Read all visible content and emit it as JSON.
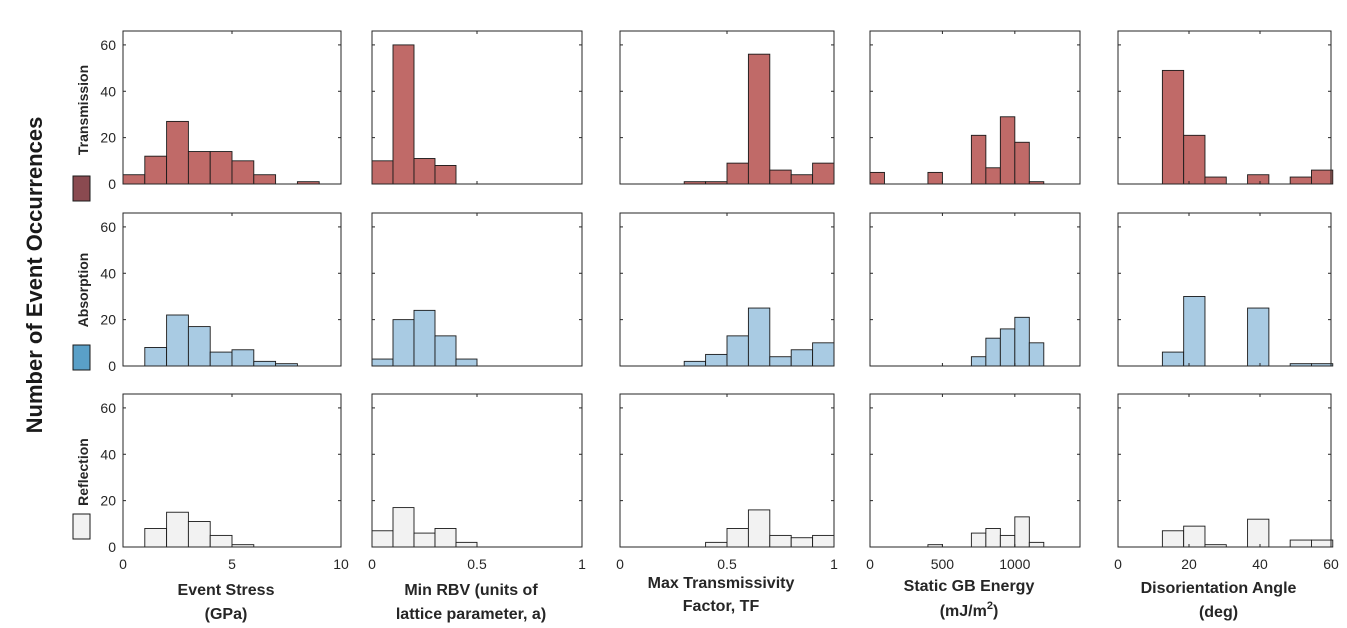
{
  "figure": {
    "ylabel": "Number of Event Occurrences",
    "rows": [
      {
        "label": "Transmission",
        "color": "#c06a68",
        "swatch": "#8a4a50"
      },
      {
        "label": "Absorption",
        "color": "#a9cbe3",
        "swatch": "#5aa0c8"
      },
      {
        "label": "Reflection",
        "color": "#f2f2f2",
        "swatch": "#f2f2f2"
      }
    ],
    "xlabel_lines": [
      [
        "Event Stress",
        "(GPa)"
      ],
      [
        "Min RBV (units of",
        "lattice parameter, a)"
      ],
      [
        "Max Transmissivity",
        "Factor, TF"
      ],
      [
        "Static GB Energy",
        "(mJ/m",
        "2",
        ")"
      ],
      [
        "Disorientation Angle",
        "(deg)"
      ]
    ]
  },
  "chart_data": [
    {
      "type": "bar",
      "title": "Event Stress (GPa)",
      "xlabel": "Event Stress (GPa)",
      "ylabel": "Number of Event Occurrences",
      "xlim": [
        0,
        10
      ],
      "ylim": [
        0,
        66
      ],
      "xticks": [
        "0",
        "5",
        "10"
      ],
      "xtick_values": [
        0,
        5,
        10
      ],
      "yticks": [
        "0",
        "20",
        "40",
        "60"
      ],
      "ytick_values": [
        0,
        20,
        40,
        60
      ],
      "bin_edges": [
        0,
        1,
        2,
        3,
        4,
        5,
        6,
        7,
        8,
        9,
        10
      ],
      "series": [
        {
          "name": "Transmission",
          "values": [
            4,
            12,
            27,
            14,
            14,
            10,
            4,
            0,
            1,
            0
          ]
        },
        {
          "name": "Absorption",
          "values": [
            0,
            8,
            22,
            17,
            6,
            7,
            2,
            1,
            0,
            0
          ]
        },
        {
          "name": "Reflection",
          "values": [
            0,
            8,
            15,
            11,
            5,
            1,
            0,
            0,
            0,
            0
          ]
        }
      ]
    },
    {
      "type": "bar",
      "title": "Min RBV",
      "xlabel": "Min RBV (units of lattice parameter, a)",
      "ylabel": "Number of Event Occurrences",
      "xlim": [
        0,
        1
      ],
      "ylim": [
        0,
        66
      ],
      "xticks": [
        "0",
        "0.5",
        "1"
      ],
      "xtick_values": [
        0,
        0.5,
        1
      ],
      "yticks": [
        "0",
        "20",
        "40",
        "60"
      ],
      "ytick_values": [
        0,
        20,
        40,
        60
      ],
      "bin_edges": [
        0,
        0.1,
        0.2,
        0.3,
        0.4,
        0.5
      ],
      "series": [
        {
          "name": "Transmission",
          "values": [
            10,
            60,
            11,
            8,
            0
          ]
        },
        {
          "name": "Absorption",
          "values": [
            3,
            20,
            24,
            13,
            3
          ]
        },
        {
          "name": "Reflection",
          "values": [
            7,
            17,
            6,
            8,
            2
          ]
        }
      ]
    },
    {
      "type": "bar",
      "title": "Max Transmissivity Factor",
      "xlabel": "Max Transmissivity Factor, TF",
      "ylabel": "Number of Event Occurrences",
      "xlim": [
        0,
        1
      ],
      "ylim": [
        0,
        66
      ],
      "xticks": [
        "0",
        "0.5",
        "1"
      ],
      "xtick_values": [
        0,
        0.5,
        1
      ],
      "yticks": [
        "0",
        "20",
        "40",
        "60"
      ],
      "ytick_values": [
        0,
        20,
        40,
        60
      ],
      "bin_edges": [
        0.3,
        0.4,
        0.5,
        0.6,
        0.7,
        0.8,
        0.9,
        1.0
      ],
      "series": [
        {
          "name": "Transmission",
          "values": [
            1,
            1,
            9,
            56,
            6,
            4,
            9
          ]
        },
        {
          "name": "Absorption",
          "values": [
            2,
            5,
            13,
            25,
            4,
            7,
            10
          ]
        },
        {
          "name": "Reflection",
          "values": [
            0,
            2,
            8,
            16,
            5,
            4,
            5
          ]
        }
      ]
    },
    {
      "type": "bar",
      "title": "Static GB Energy",
      "xlabel": "Static GB Energy (mJ/m^2)",
      "ylabel": "Number of Event Occurrences",
      "xlim": [
        0,
        1450
      ],
      "ylim": [
        0,
        66
      ],
      "xticks": [
        "0",
        "500",
        "1000"
      ],
      "xtick_values": [
        0,
        500,
        1000
      ],
      "yticks": [
        "0",
        "20",
        "40",
        "60"
      ],
      "ytick_values": [
        0,
        20,
        40,
        60
      ],
      "bin_edges": [
        0,
        100,
        200,
        300,
        400,
        500,
        600,
        700,
        800,
        900,
        1000,
        1100,
        1200,
        1300,
        1400
      ],
      "series": [
        {
          "name": "Transmission",
          "values": [
            5,
            0,
            0,
            0,
            5,
            0,
            0,
            21,
            7,
            29,
            18,
            1,
            0,
            0
          ]
        },
        {
          "name": "Absorption",
          "values": [
            0,
            0,
            0,
            0,
            0,
            0,
            0,
            4,
            12,
            16,
            21,
            10,
            0,
            0
          ]
        },
        {
          "name": "Reflection",
          "values": [
            0,
            0,
            0,
            0,
            1,
            0,
            0,
            6,
            8,
            5,
            13,
            2,
            0,
            0
          ]
        }
      ]
    },
    {
      "type": "bar",
      "title": "Disorientation Angle",
      "xlabel": "Disorientation Angle (deg)",
      "ylabel": "Number of Event Occurrences",
      "xlim": [
        0,
        60
      ],
      "ylim": [
        0,
        66
      ],
      "xticks": [
        "0",
        "20",
        "40",
        "60"
      ],
      "xtick_values": [
        0,
        20,
        40,
        60
      ],
      "yticks": [
        "0",
        "20",
        "40",
        "60"
      ],
      "ytick_values": [
        0,
        20,
        40,
        60
      ],
      "bin_edges": [
        12.5,
        18.5,
        24.5,
        30.5,
        36.5,
        42.5,
        48.5,
        54.5,
        60.5
      ],
      "series": [
        {
          "name": "Transmission",
          "values": [
            49,
            21,
            3,
            0,
            4,
            0,
            3,
            6
          ]
        },
        {
          "name": "Absorption",
          "values": [
            6,
            30,
            0,
            0,
            25,
            0,
            1,
            1
          ]
        },
        {
          "name": "Reflection",
          "values": [
            7,
            9,
            1,
            0,
            12,
            0,
            3,
            3
          ]
        }
      ]
    }
  ]
}
